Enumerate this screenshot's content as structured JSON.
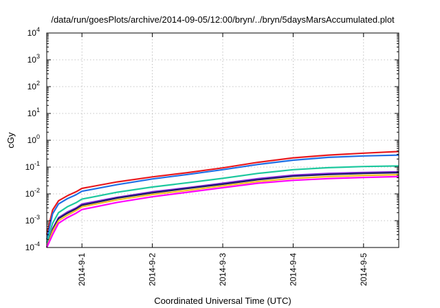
{
  "chart_data": {
    "type": "line",
    "title": "/data/run/goesPlots/archive/2014-09-05/12:00/bryn/../bryn/5daysMarsAccumulated.plot",
    "xlabel": "Coordinated Universal Time (UTC)",
    "ylabel": "cGy",
    "x_ticks": [
      "2014-9-1",
      "2014-9-2",
      "2014-9-3",
      "2014-9-4",
      "2014-9-5"
    ],
    "xlim": [
      "2014-08-31T12:00",
      "2014-09-05T12:00"
    ],
    "y_scale": "log",
    "ylim": [
      0.0001,
      10000
    ],
    "y_ticks": [
      {
        "base": "10",
        "exp": "-4"
      },
      {
        "base": "10",
        "exp": "-3"
      },
      {
        "base": "10",
        "exp": "-2"
      },
      {
        "base": "10",
        "exp": "-1"
      },
      {
        "base": "10",
        "exp": "0"
      },
      {
        "base": "10",
        "exp": "1"
      },
      {
        "base": "10",
        "exp": "2"
      },
      {
        "base": "10",
        "exp": "3"
      },
      {
        "base": "10",
        "exp": "4"
      }
    ],
    "grid": true,
    "legend": "none",
    "x": [
      "2014-08-31T12:00",
      "2014-08-31T14:00",
      "2014-08-31T16:00",
      "2014-08-31T19:00",
      "2014-08-31T22:00",
      "2014-09-01T00:00",
      "2014-09-01T12:00",
      "2014-09-02T00:00",
      "2014-09-02T12:00",
      "2014-09-03T00:00",
      "2014-09-03T12:00",
      "2014-09-04T00:00",
      "2014-09-04T12:00",
      "2014-09-05T00:00",
      "2014-09-05T12:00"
    ],
    "series": [
      {
        "color": "#e8191e",
        "values": [
          0.0003,
          0.0025,
          0.0055,
          0.0085,
          0.012,
          0.016,
          0.028,
          0.043,
          0.062,
          0.093,
          0.15,
          0.22,
          0.28,
          0.33,
          0.38
        ]
      },
      {
        "color": "#1f6fe5",
        "values": [
          0.0002,
          0.0018,
          0.0042,
          0.0066,
          0.0093,
          0.0125,
          0.022,
          0.036,
          0.053,
          0.08,
          0.125,
          0.18,
          0.23,
          0.26,
          0.28
        ]
      },
      {
        "color": "#1dc89e",
        "values": [
          0.00015,
          0.0008,
          0.002,
          0.0033,
          0.0047,
          0.0064,
          0.0115,
          0.018,
          0.026,
          0.038,
          0.058,
          0.08,
          0.095,
          0.105,
          0.11
        ]
      },
      {
        "color": "#8a2be2",
        "values": [
          0.0001,
          0.0005,
          0.0013,
          0.0021,
          0.003,
          0.0042,
          0.0075,
          0.012,
          0.017,
          0.025,
          0.037,
          0.05,
          0.058,
          0.063,
          0.067
        ]
      },
      {
        "color": "#1a1a66",
        "values": [
          0.0001,
          0.00045,
          0.0012,
          0.0019,
          0.0028,
          0.0038,
          0.007,
          0.011,
          0.016,
          0.023,
          0.034,
          0.046,
          0.053,
          0.058,
          0.062
        ]
      },
      {
        "color": "#f0c020",
        "values": [
          0.0001,
          0.0004,
          0.001,
          0.0016,
          0.0024,
          0.0033,
          0.006,
          0.0095,
          0.0135,
          0.02,
          0.029,
          0.038,
          0.044,
          0.049,
          0.052
        ]
      },
      {
        "color": "#ff00ff",
        "values": [
          0.0001,
          0.0003,
          0.0008,
          0.0013,
          0.0019,
          0.0026,
          0.0048,
          0.0078,
          0.0115,
          0.017,
          0.025,
          0.032,
          0.037,
          0.041,
          0.044
        ]
      }
    ]
  }
}
